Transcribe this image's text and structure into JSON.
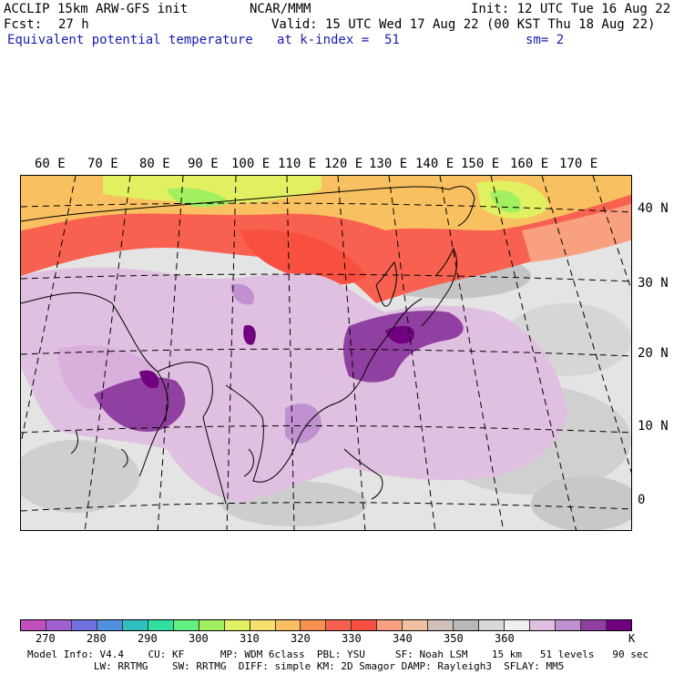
{
  "header": {
    "model": "ACCLIP 15km ARW-GFS init",
    "org": "NCAR/MMM",
    "init": "Init: 12 UTC Tue 16 Aug 22",
    "fcst_label": "Fcst:",
    "fcst_value": "27 h",
    "valid": "Valid: 15 UTC Wed 17 Aug 22 (00 KST Thu 18 Aug 22)",
    "field": "Equivalent potential temperature",
    "level": "at k-index =  51",
    "smooth": "sm= 2"
  },
  "map": {
    "region": "East and South Asia / Western Pacific",
    "lon_labels": [
      "60 E",
      "70 E",
      "80 E",
      "90 E",
      "100 E",
      "110 E",
      "120 E",
      "130 E",
      "140 E",
      "150 E",
      "160 E",
      "170 E"
    ],
    "lat_labels": [
      "40 N",
      "30 N",
      "20 N",
      "10 N",
      "0"
    ]
  },
  "colorbar": {
    "unit": "K",
    "colors": [
      "#c050c0",
      "#a060d0",
      "#7070e0",
      "#5090e0",
      "#30c0c0",
      "#30e0a0",
      "#60f080",
      "#a0f060",
      "#e0f060",
      "#f8e070",
      "#f8c060",
      "#f89050",
      "#f86050",
      "#f85040",
      "#f8a080",
      "#f0c0a0",
      "#d0c0b8",
      "#b8b8b8",
      "#d8d8d8",
      "#f0f0f0",
      "#e0c0e0",
      "#c090d0",
      "#9040a0",
      "#700080"
    ],
    "labels": [
      "270",
      "280",
      "290",
      "300",
      "310",
      "320",
      "330",
      "340",
      "350",
      "360"
    ]
  },
  "footer": {
    "line1": "Model Info: V4.4    CU: KF      MP: WDM 6class  PBL: YSU     SF: Noah LSM    15 km   51 levels   90 sec",
    "line2": "           LW: RRTMG    SW: RRTMG  DIFF: simple KM: 2D Smagor DAMP: Rayleigh3  SFLAY: MM5"
  }
}
